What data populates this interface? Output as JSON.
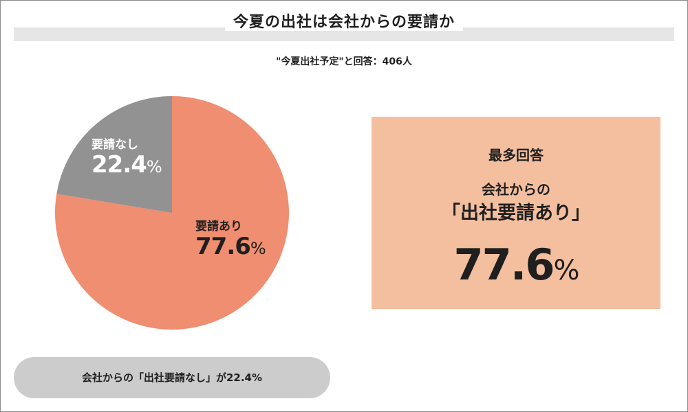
{
  "title": "今夏の出社は会社からの要請か",
  "subtitle": "\"今夏出社予定\"と回答：406人",
  "chart_data": {
    "type": "pie",
    "title": "今夏の出社は会社からの要請か",
    "subtitle": "\"今夏出社予定\"と回答：406人",
    "slices": [
      {
        "label": "要請あり",
        "value": 77.6,
        "value_text": "77.6",
        "unit": "%",
        "color": "#ef8e70",
        "label_color": "#1f1f1f"
      },
      {
        "label": "要請なし",
        "value": 22.4,
        "value_text": "22.4",
        "unit": "%",
        "color": "#929292",
        "label_color": "#ffffff"
      }
    ],
    "start_angle_deg": 0,
    "direction": "clockwise"
  },
  "highlight": {
    "heading": "最多回答",
    "line1": "会社からの",
    "line2": "「出社要請あり」",
    "value": "77.6",
    "unit": "%",
    "background": "#f4bf9f"
  },
  "note": "会社からの「出社要請なし」が22.4%",
  "colors": {
    "title_band": "#e6e6e6",
    "note_pill": "#cccccc",
    "frame_border": "#8a8a8a"
  }
}
